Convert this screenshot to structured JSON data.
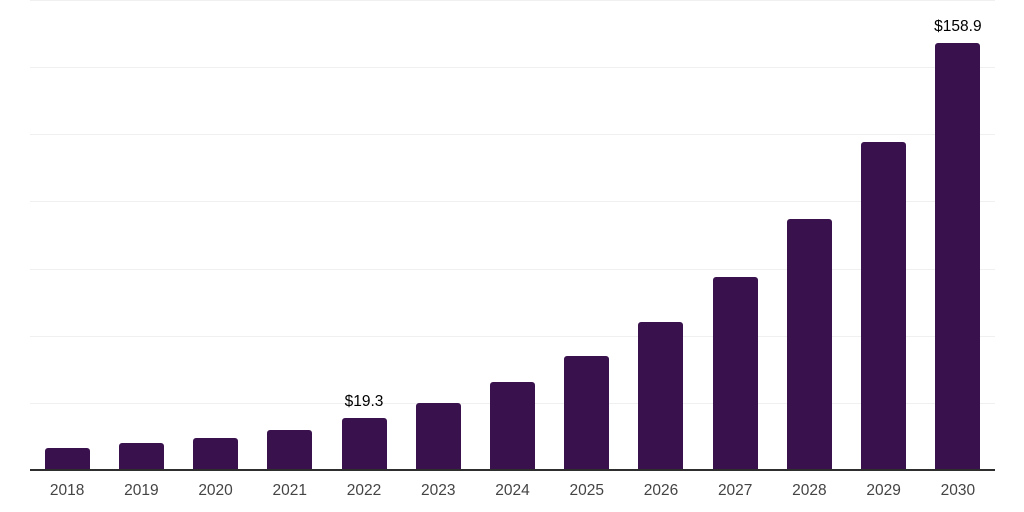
{
  "chart_data": {
    "type": "bar",
    "title": "",
    "xlabel": "",
    "ylabel": "",
    "categories": [
      "2018",
      "2019",
      "2020",
      "2021",
      "2022",
      "2023",
      "2024",
      "2025",
      "2026",
      "2027",
      "2028",
      "2029",
      "2030"
    ],
    "values": [
      8.2,
      10.0,
      12.0,
      14.9,
      19.3,
      25.1,
      32.7,
      42.6,
      55.0,
      72.0,
      93.5,
      122.0,
      158.9
    ],
    "annotations": [
      {
        "category": "2022",
        "label": "$19.3"
      },
      {
        "category": "2030",
        "label": "$158.9"
      }
    ],
    "ylim": [
      0,
      175
    ],
    "gridline_values": [
      25,
      50,
      75,
      100,
      125,
      150,
      175
    ],
    "grid": true,
    "legend": false,
    "colors": {
      "bar": "#38114D",
      "gridline": "#f0f0f0",
      "axis_line": "#2e2e2e",
      "value_label": "#000000",
      "tick_label": "#444444",
      "background": "#ffffff"
    }
  }
}
